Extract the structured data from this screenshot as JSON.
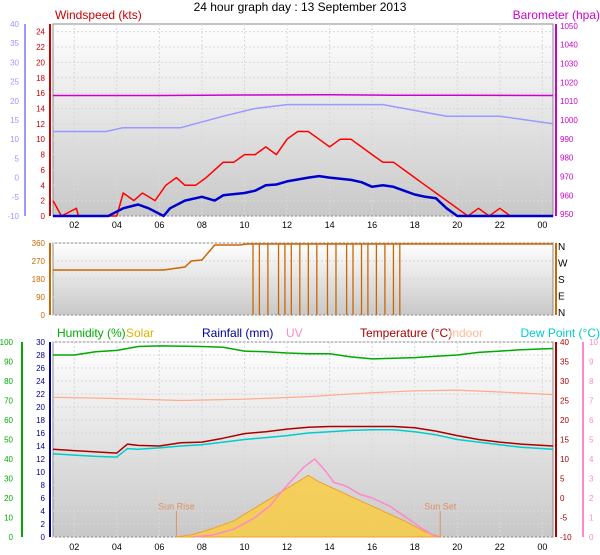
{
  "page_title": "24 hour graph day : 13 September 2013",
  "colors": {
    "wind_gust": "#ff0000",
    "wind_avg": "#0000cc",
    "barometer": "#cc00cc",
    "direction": "#cc6600",
    "humidity": "#00aa00",
    "solar": "#ffcc33",
    "uv": "#ff88cc",
    "rainfall": "#000099",
    "temperature": "#aa0000",
    "indoor": "#ffaa88",
    "dewpoint": "#00cccc",
    "axis_left_top": "#9999ff"
  },
  "chart_data": [
    {
      "type": "line",
      "id": "wind",
      "labels": {
        "left": "Windspeed (kts)",
        "right": "Barometer (hpa)"
      },
      "x_ticks": [
        "02",
        "04",
        "06",
        "08",
        "10",
        "12",
        "14",
        "16",
        "18",
        "20",
        "22",
        "00"
      ],
      "x_range": [
        1.0,
        24.5
      ],
      "y_left": {
        "range": [
          0,
          25
        ],
        "ticks": [
          0,
          2,
          4,
          6,
          8,
          10,
          12,
          14,
          16,
          18,
          20,
          22,
          24
        ]
      },
      "y_right": {
        "range": [
          949,
          1051
        ],
        "ticks": [
          950,
          960,
          970,
          980,
          990,
          1000,
          1010,
          1020,
          1030,
          1040,
          1050
        ]
      },
      "y_left_outer": {
        "ticks": [
          -10,
          -5,
          0,
          5,
          10,
          15,
          20,
          25,
          30,
          35,
          40
        ]
      },
      "series": [
        {
          "name": "gust",
          "axis": "left",
          "x": [
            1,
            1.4,
            2.1,
            2.2,
            3,
            4,
            4.3,
            4.8,
            5.2,
            5.8,
            6.3,
            6.8,
            7.2,
            7.7,
            8.2,
            8.6,
            9,
            9.5,
            10,
            10.5,
            11,
            11.5,
            12,
            12.5,
            13,
            13.5,
            14,
            14.5,
            15,
            15.5,
            16,
            16.5,
            17,
            17.5,
            18,
            18.5,
            19,
            19.5,
            20,
            20.5,
            21,
            21.5,
            22,
            22.5,
            24.5
          ],
          "y": [
            2,
            0,
            1,
            0,
            0,
            0,
            3,
            2,
            3,
            2,
            4,
            5,
            4,
            4,
            5,
            6,
            7,
            7,
            8,
            8,
            9,
            8,
            10,
            11,
            11,
            10,
            9,
            10,
            10,
            9,
            8,
            7,
            7,
            6,
            5,
            4,
            3,
            2,
            1,
            0,
            1,
            0,
            1,
            0,
            0
          ]
        },
        {
          "name": "avg",
          "axis": "left",
          "x": [
            1,
            3.6,
            4.3,
            5,
            5.5,
            6.2,
            6.5,
            7.2,
            8,
            8.6,
            9,
            10,
            10.5,
            11,
            11.5,
            12,
            13,
            13.5,
            14,
            15,
            15.5,
            16,
            16.5,
            17,
            17.5,
            18,
            18.5,
            19,
            19.5,
            20,
            24.5
          ],
          "y": [
            0,
            0,
            1,
            1.5,
            1,
            0,
            1,
            2,
            2.5,
            2,
            2.7,
            3,
            3.3,
            4,
            4.1,
            4.5,
            5,
            5.2,
            5,
            4.7,
            4.4,
            3.8,
            4,
            3.8,
            3.3,
            2.8,
            2.5,
            2.3,
            1,
            0,
            0
          ]
        },
        {
          "name": "pressure",
          "axis": "right",
          "x": [
            1,
            6,
            10,
            14,
            17,
            20,
            24.5
          ],
          "y": [
            1013,
            1013,
            1013.3,
            1013.4,
            1013.2,
            1013.1,
            1013
          ]
        },
        {
          "name": "wind-scale",
          "axis": "left_outer",
          "x": [
            1,
            3.5,
            4.3,
            7,
            9,
            10.5,
            12,
            14.5,
            16.5,
            17.5,
            19.5,
            21,
            22,
            24.5
          ],
          "y": [
            12,
            12,
            13,
            13,
            16,
            18,
            19,
            19,
            19,
            18,
            16,
            16,
            16,
            14
          ]
        }
      ]
    },
    {
      "type": "line",
      "id": "direction",
      "x_range": [
        1.0,
        24.5
      ],
      "y_left": {
        "range": [
          0,
          360
        ],
        "ticks": [
          0,
          90,
          180,
          270,
          360
        ]
      },
      "y_right": {
        "ticks": [
          "N",
          "W",
          "S",
          "E",
          "N"
        ]
      },
      "series": [
        {
          "name": "direction",
          "x": [
            1,
            6.2,
            7.2,
            7.5,
            8,
            8.6,
            9.8,
            10.1,
            24.5
          ],
          "y": [
            225,
            225,
            240,
            270,
            275,
            350,
            350,
            355,
            355
          ]
        }
      ],
      "drop_lines": [
        10.4,
        10.7,
        11.1,
        11.6,
        11.9,
        12.2,
        12.6,
        13.0,
        13.4,
        13.9,
        14.3,
        14.8,
        15.1,
        15.5,
        15.8,
        16.2,
        16.6,
        17.0,
        17.3
      ]
    },
    {
      "type": "line",
      "id": "climate",
      "labels": {
        "humidity": "Humidity (%)",
        "solar": "Solar",
        "rainfall": "Rainfall (mm)",
        "uv": "UV",
        "temperature": "Temperature (°C)",
        "indoor": "Indoor",
        "dewpoint": "Dew Point (°C)"
      },
      "x_ticks": [
        "02",
        "04",
        "06",
        "08",
        "10",
        "12",
        "14",
        "16",
        "18",
        "20",
        "22",
        "00"
      ],
      "x_range": [
        1.0,
        24.5
      ],
      "y_humidity": {
        "ticks": [
          0,
          10,
          20,
          30,
          40,
          50,
          60,
          70,
          80,
          90,
          100
        ]
      },
      "y_rain": {
        "range": [
          0,
          30
        ],
        "ticks": [
          0,
          2,
          4,
          6,
          8,
          10,
          12,
          14,
          16,
          18,
          20,
          22,
          24,
          26,
          28,
          30
        ]
      },
      "y_temp": {
        "range": [
          -10,
          40
        ],
        "ticks": [
          -10,
          -5,
          0,
          5,
          10,
          15,
          20,
          25,
          30,
          35,
          40
        ]
      },
      "y_uv": {
        "ticks": [
          0,
          1,
          2,
          3,
          4,
          5,
          6,
          7,
          8,
          9,
          10
        ]
      },
      "series": [
        {
          "name": "humidity",
          "axis": "rain",
          "x": [
            1,
            2,
            3,
            4,
            4.5,
            5,
            6,
            8,
            9,
            10,
            11,
            12,
            13,
            14,
            15,
            16,
            17,
            18,
            19,
            20,
            21,
            22,
            23,
            24.5
          ],
          "y": [
            28,
            28,
            28.5,
            28.7,
            29,
            29.3,
            29.4,
            29.3,
            29.2,
            28.6,
            28.5,
            28.3,
            28.2,
            28.2,
            27.7,
            27.4,
            27.5,
            27.6,
            27.8,
            28,
            28.4,
            28.6,
            28.8,
            29
          ]
        },
        {
          "name": "indoor",
          "axis": "rain",
          "x": [
            1,
            4,
            7,
            10,
            13,
            16,
            18,
            20,
            22,
            24.5
          ],
          "y": [
            21.5,
            21.3,
            21,
            21.2,
            21.6,
            22.2,
            22.5,
            22.6,
            22.3,
            21.9
          ]
        },
        {
          "name": "temperature",
          "axis": "rain",
          "x": [
            1,
            2,
            3,
            4,
            4.5,
            5,
            6,
            7,
            8,
            9,
            10,
            11,
            12,
            13,
            14,
            15,
            16,
            17,
            18,
            19,
            20,
            21,
            22,
            23,
            24.5
          ],
          "y": [
            13.5,
            13.3,
            13.1,
            12.9,
            14.3,
            14.1,
            14,
            14.5,
            14.6,
            15.2,
            15.9,
            16.2,
            16.6,
            16.9,
            17,
            17,
            17,
            17,
            16.8,
            16.3,
            15.6,
            15,
            14.6,
            14.3,
            14
          ]
        },
        {
          "name": "dewpoint",
          "axis": "rain",
          "x": [
            1,
            2,
            3,
            4,
            4.5,
            5,
            6,
            7,
            8,
            9,
            10,
            11,
            12,
            13,
            14,
            15,
            16,
            17,
            18,
            19,
            20,
            21,
            22,
            23,
            24.5
          ],
          "y": [
            12.8,
            12.6,
            12.4,
            12.3,
            13.6,
            13.5,
            13.7,
            14,
            14.2,
            14.6,
            15,
            15.3,
            15.6,
            16,
            16.2,
            16.4,
            16.5,
            16.5,
            16.2,
            15.7,
            15,
            14.6,
            14.2,
            13.8,
            13.5
          ]
        },
        {
          "name": "solar",
          "axis": "rain",
          "x": [
            6.8,
            7.6,
            8.5,
            9.5,
            10.5,
            11.5,
            12.5,
            13,
            13.5,
            14.5,
            15.5,
            16.5,
            17.5,
            18.5,
            19.2
          ],
          "y": [
            0,
            0.4,
            1.3,
            2.5,
            4.5,
            6.5,
            8.5,
            9.5,
            8.5,
            7,
            5.5,
            4,
            2.5,
            0.8,
            0
          ]
        },
        {
          "name": "uv",
          "axis": "temp",
          "x": [
            7.6,
            8.5,
            9.5,
            10.5,
            11.2,
            11.8,
            12.3,
            12.8,
            13.3,
            13.8,
            14.2,
            14.8,
            15.4,
            16,
            16.8,
            17.6,
            18.4,
            19
          ],
          "y": [
            -10,
            -9.5,
            -8,
            -5,
            -2,
            2,
            5,
            8,
            10,
            7,
            4,
            3,
            1,
            0,
            -2,
            -5,
            -8,
            -10
          ]
        }
      ],
      "annotations": [
        {
          "text": "Sun Rise",
          "x": 6.8
        },
        {
          "text": "Sun Set",
          "x": 19.2
        }
      ]
    }
  ]
}
